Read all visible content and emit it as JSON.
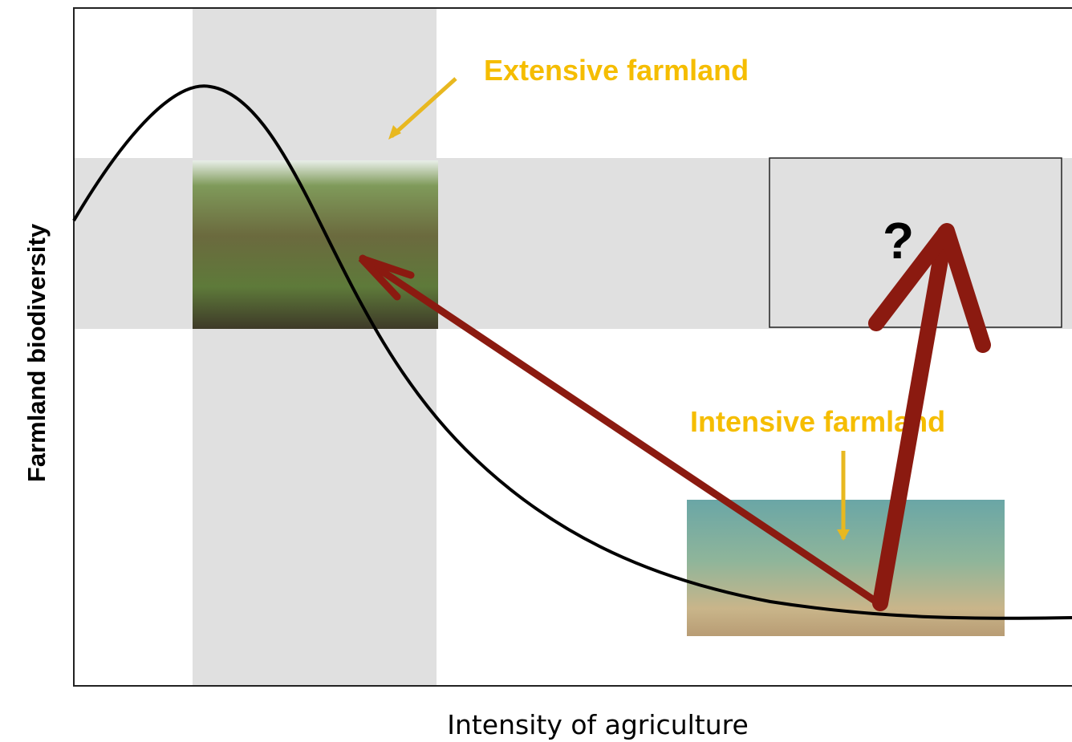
{
  "labels": {
    "extensive": "Extensive farmland",
    "intensive": "Intensive farmland",
    "question": "?"
  },
  "axes": {
    "y": "Farmland biodiversity",
    "x": "Intensity of agriculture"
  }
}
